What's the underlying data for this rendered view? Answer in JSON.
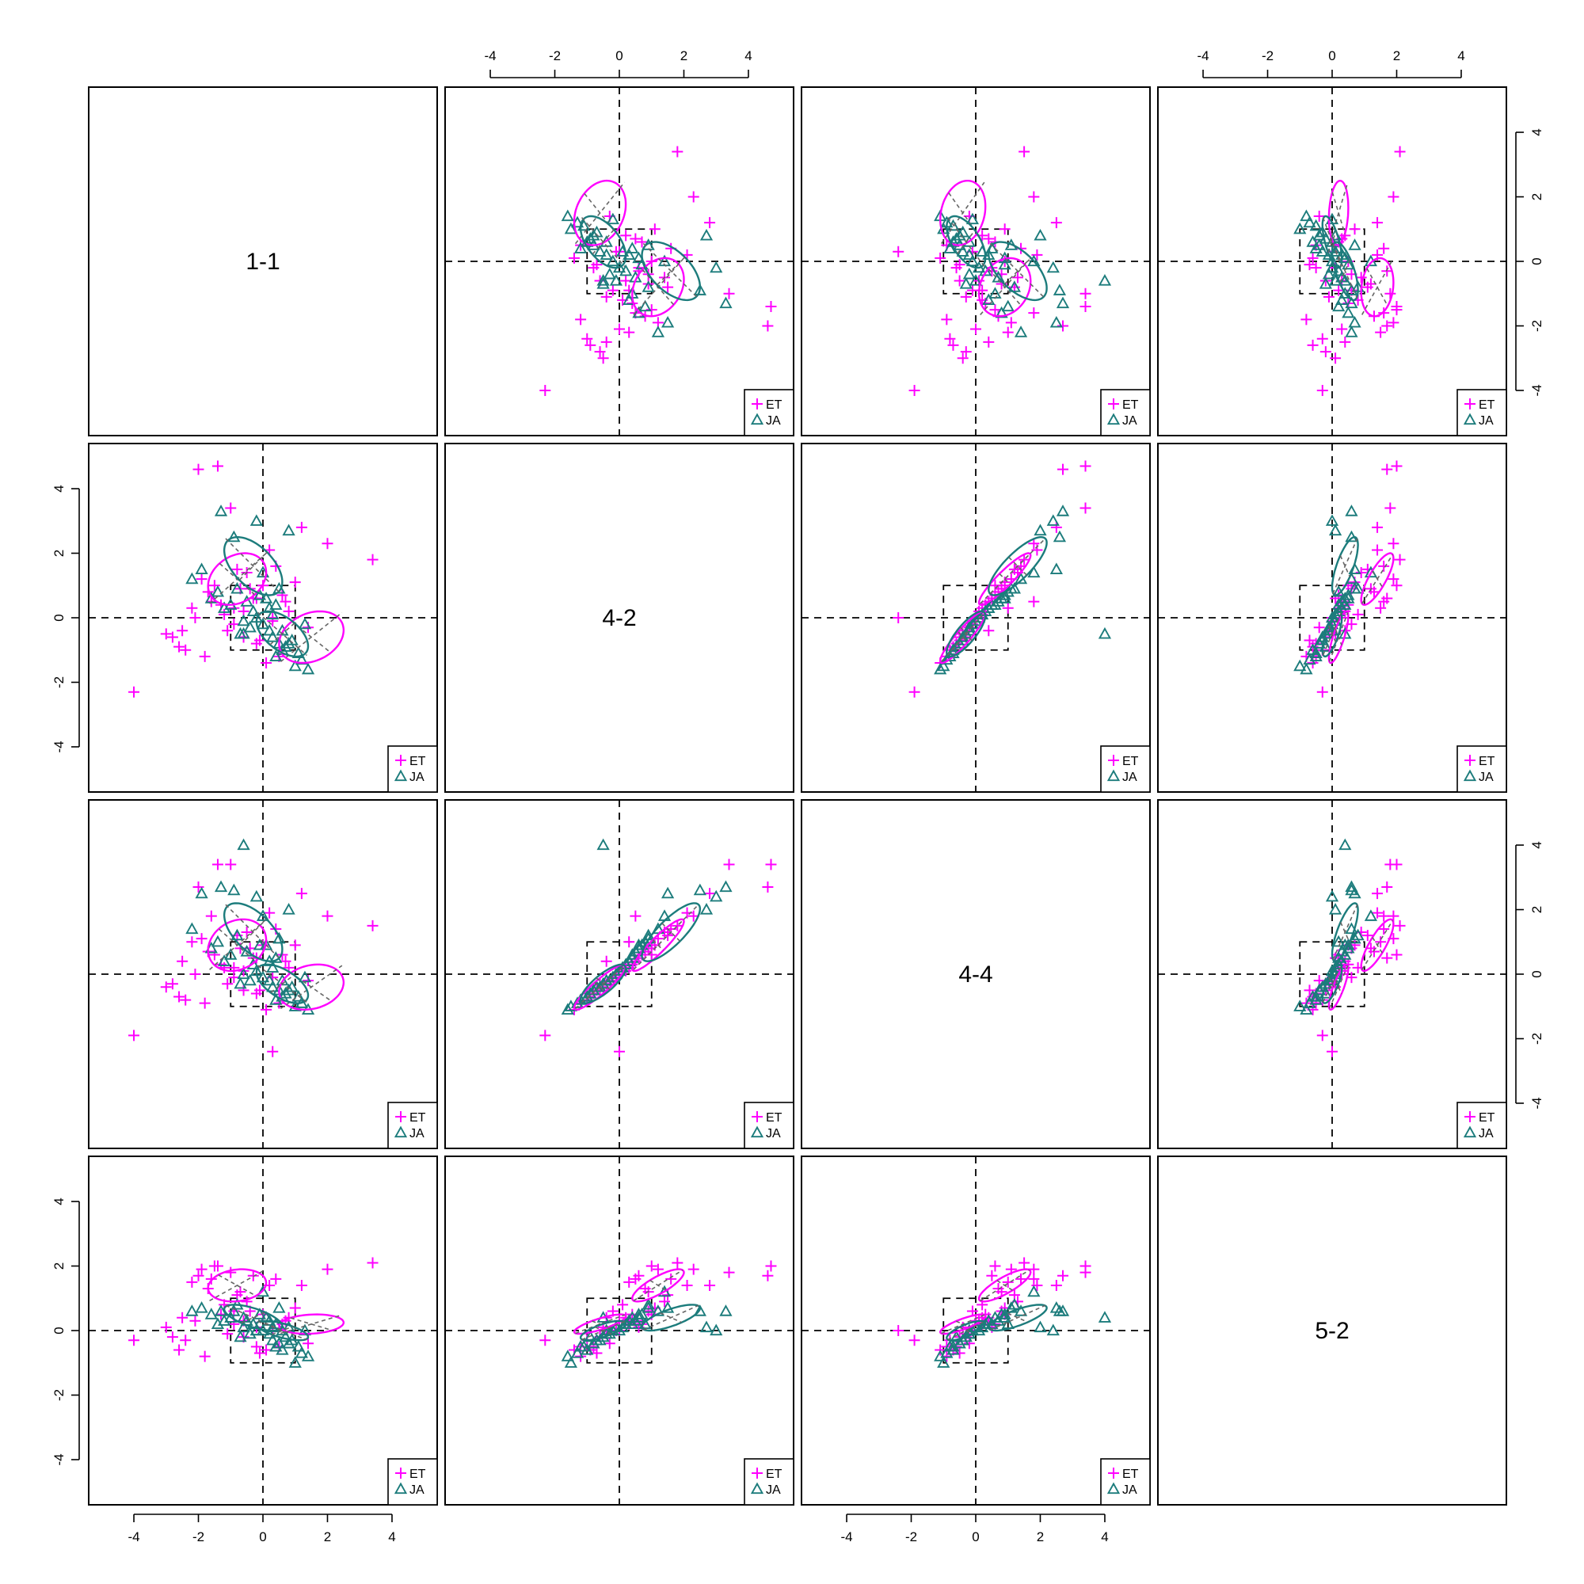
{
  "chart_data": {
    "type": "scatter",
    "layout": "scatterplot-matrix",
    "diagonal_labels": [
      "1-1",
      "4-2",
      "4-4",
      "5-2"
    ],
    "axis_range": [
      -5.4,
      5.4
    ],
    "tick_labels": [
      "-4",
      "-2",
      "0",
      "2",
      "4"
    ],
    "tick_values": [
      -4,
      -2,
      0,
      2,
      4
    ],
    "reference_box": [
      -1,
      1
    ],
    "colors": {
      "ET": "#ff00ff",
      "JA": "#1c7c7c",
      "ellipse_axis": "#666666"
    },
    "legend": [
      {
        "label": "ET",
        "marker": "plus",
        "color": "#ff00ff"
      },
      {
        "label": "JA",
        "marker": "triangle",
        "color": "#1c7c7c"
      }
    ],
    "variables": {
      "v1": {
        "ET": [
          -1.6,
          -2.5,
          -1.9,
          -0.7,
          -1.2,
          -2.8,
          -2.2,
          -1.5,
          -0.9,
          -0.3,
          -2.1,
          -2.4,
          -1.7,
          -0.5,
          0.2,
          -1.0,
          -3.0,
          -2.6,
          -1.3,
          -0.8,
          -1.8,
          -4.0,
          -0.2,
          0.6,
          1.0,
          0.3,
          2.0,
          3.4,
          1.4,
          -0.6,
          -0.1,
          0.4,
          0.8,
          -1.1,
          -0.4,
          -2.0,
          -1.4,
          -0.9,
          0.1,
          0.5,
          -0.2,
          1.2,
          0.7,
          -0.6,
          0.0,
          0.3
        ],
        "JA": [
          -2.2,
          -1.4,
          -1.9,
          -1.6,
          -1.2,
          -0.8,
          -1.0,
          -0.6,
          -0.3,
          -0.5,
          -0.2,
          0.1,
          -0.4,
          -0.7,
          0.0,
          0.3,
          0.5,
          0.2,
          0.6,
          0.9,
          0.4,
          0.7,
          1.0,
          0.8,
          1.2,
          1.4,
          1.1,
          0.6,
          0.3,
          -0.1,
          -0.9,
          -1.3,
          0.2,
          0.5,
          0.0,
          -0.2,
          0.8,
          1.3,
          0.4,
          -0.6
        ]
      },
      "v2": {
        "ET": [
          0.5,
          -0.4,
          1.2,
          0.9,
          0.1,
          -0.6,
          0.3,
          1.0,
          -0.2,
          0.6,
          0.0,
          -1.0,
          0.8,
          1.4,
          2.1,
          3.4,
          -0.5,
          -0.9,
          0.4,
          1.5,
          -1.2,
          -2.3,
          -0.8,
          0.7,
          1.1,
          -0.1,
          2.3,
          1.8,
          -0.3,
          0.2,
          -0.7,
          1.6,
          0.2,
          -0.4,
          0.9,
          4.6,
          4.7,
          0.3,
          -1.4,
          -1.2,
          0.6,
          2.8,
          0.5,
          -0.6,
          1.0,
          0.0
        ],
        "JA": [
          1.2,
          0.8,
          1.5,
          0.6,
          0.3,
          0.9,
          0.4,
          -0.1,
          0.2,
          0.5,
          0.0,
          0.6,
          -0.3,
          -0.5,
          -0.2,
          -0.6,
          -0.8,
          -0.4,
          -1.0,
          -0.7,
          -1.2,
          -0.9,
          -1.5,
          -0.8,
          -1.3,
          -1.6,
          -1.1,
          -0.4,
          0.1,
          0.7,
          2.5,
          3.3,
          0.3,
          0.9,
          1.4,
          3.0,
          2.7,
          -0.2,
          0.4,
          -0.5
        ]
      },
      "v3": {
        "ET": [
          1.8,
          0.4,
          1.1,
          0.8,
          0.2,
          -0.3,
          1.0,
          0.6,
          -0.1,
          0.5,
          0.0,
          -0.8,
          0.7,
          1.3,
          1.9,
          3.4,
          -0.4,
          -0.7,
          0.3,
          1.2,
          -0.9,
          -1.9,
          -0.6,
          0.6,
          0.9,
          -0.1,
          1.8,
          1.5,
          -0.2,
          0.1,
          -0.5,
          1.4,
          0.2,
          -0.3,
          0.8,
          2.7,
          3.4,
          0.2,
          -1.1,
          -0.9,
          0.5,
          2.5,
          0.4,
          -0.5,
          0.9,
          -2.4
        ],
        "JA": [
          1.4,
          1.0,
          2.5,
          0.8,
          0.4,
          1.2,
          0.6,
          0.0,
          0.3,
          0.7,
          0.1,
          0.9,
          -0.2,
          -0.3,
          -0.1,
          -0.4,
          -0.5,
          -0.2,
          -0.7,
          -0.4,
          -0.8,
          -0.6,
          -1.0,
          -0.5,
          -0.9,
          -1.1,
          -0.7,
          -0.2,
          0.2,
          0.9,
          2.6,
          2.7,
          0.4,
          1.1,
          1.8,
          2.4,
          2.0,
          -0.1,
          0.5,
          4.0
        ]
      },
      "v4": {
        "ET": [
          1.6,
          0.4,
          1.9,
          1.2,
          0.8,
          -0.2,
          1.5,
          2.0,
          0.6,
          1.7,
          0.3,
          -0.3,
          1.3,
          0.9,
          1.4,
          1.8,
          0.1,
          -0.6,
          0.5,
          1.1,
          -0.8,
          -0.3,
          -0.5,
          0.2,
          0.7,
          0.0,
          1.9,
          2.1,
          -0.4,
          0.3,
          -0.7,
          1.6,
          0.4,
          -0.1,
          0.6,
          1.7,
          2.0,
          0.2,
          -0.6,
          -0.5,
          0.1,
          1.4,
          0.3,
          -0.2,
          0.5,
          0.0
        ],
        "JA": [
          0.6,
          0.2,
          0.7,
          0.5,
          0.3,
          0.8,
          0.4,
          0.1,
          0.2,
          0.3,
          0.0,
          0.4,
          -0.1,
          -0.2,
          0.0,
          -0.3,
          -0.4,
          -0.1,
          -0.6,
          -0.3,
          -0.5,
          -0.2,
          -1.0,
          -0.4,
          -0.7,
          -0.8,
          -0.5,
          0.0,
          0.1,
          0.5,
          0.6,
          0.6,
          0.3,
          0.7,
          1.2,
          0.0,
          0.1,
          0.0,
          0.2,
          0.4
        ]
      }
    },
    "ellipses": {
      "ET": [
        {
          "center": [
            -0.8,
            1.2,
            0.9,
            1.4
          ],
          "halfwidth": [
            0.9,
            0.8,
            0.8,
            0.5
          ]
        },
        {
          "center": [
            1.5,
            -0.6,
            -0.4,
            0.2
          ],
          "halfwidth": [
            1.0,
            0.8,
            0.7,
            0.3
          ]
        }
      ],
      "JA": [
        {
          "center": [
            -0.3,
            1.6,
            1.3,
            0.4
          ],
          "halfwidth": [
            0.9,
            0.9,
            0.9,
            0.4
          ]
        },
        {
          "center": [
            0.6,
            -0.5,
            -0.3,
            0.0
          ],
          "halfwidth": [
            0.8,
            0.7,
            0.6,
            0.3
          ]
        }
      ]
    }
  }
}
